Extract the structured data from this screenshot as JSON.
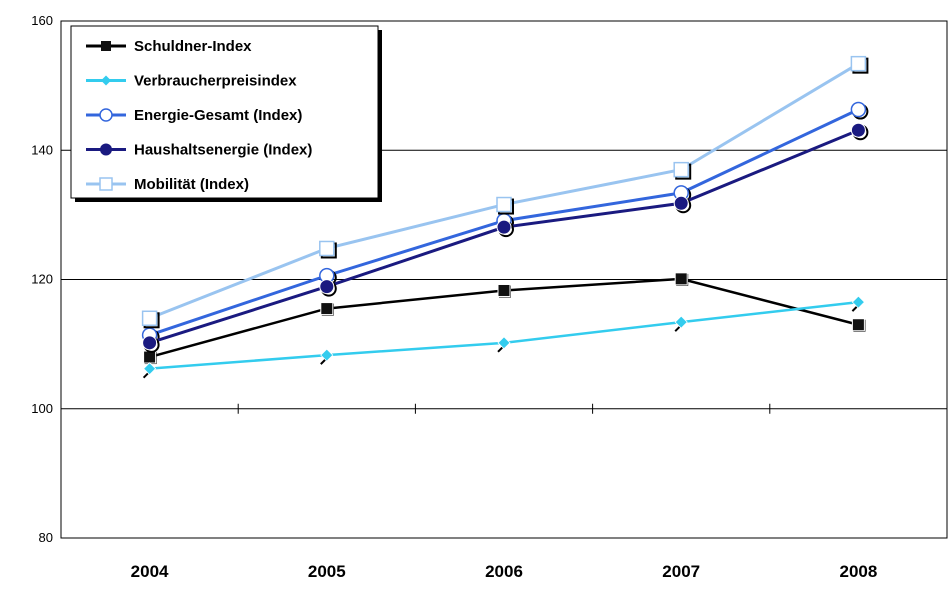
{
  "chart_data": {
    "type": "line",
    "categories": [
      "2004",
      "2005",
      "2006",
      "2007",
      "2008"
    ],
    "ylim": [
      80,
      160
    ],
    "yticks": [
      80,
      100,
      120,
      140,
      160
    ],
    "grid": "horizontal",
    "legend_position": "top-left",
    "series": [
      {
        "name": "Schuldner-Index",
        "values": [
          108,
          115.5,
          118.3,
          120.1,
          113
        ],
        "color": "#000000",
        "marker": "square-filled"
      },
      {
        "name": "Verbraucherpreisindex",
        "values": [
          106.2,
          108.3,
          110.2,
          113.4,
          116.5
        ],
        "color": "#33ccee",
        "marker": "diamond-filled"
      },
      {
        "name": "Energie-Gesamt (Index)",
        "values": [
          111.4,
          120.6,
          129.1,
          133.4,
          146.3
        ],
        "color": "#3366dd",
        "marker": "circle-open"
      },
      {
        "name": "Haushaltsenergie (Index)",
        "values": [
          110.2,
          118.9,
          128.1,
          131.8,
          143.1
        ],
        "color": "#1a1a80",
        "marker": "circle-filled"
      },
      {
        "name": "Mobilität (Index)",
        "values": [
          114,
          124.8,
          131.6,
          137,
          153.4
        ],
        "color": "#99c4f0",
        "marker": "square-open"
      }
    ]
  }
}
